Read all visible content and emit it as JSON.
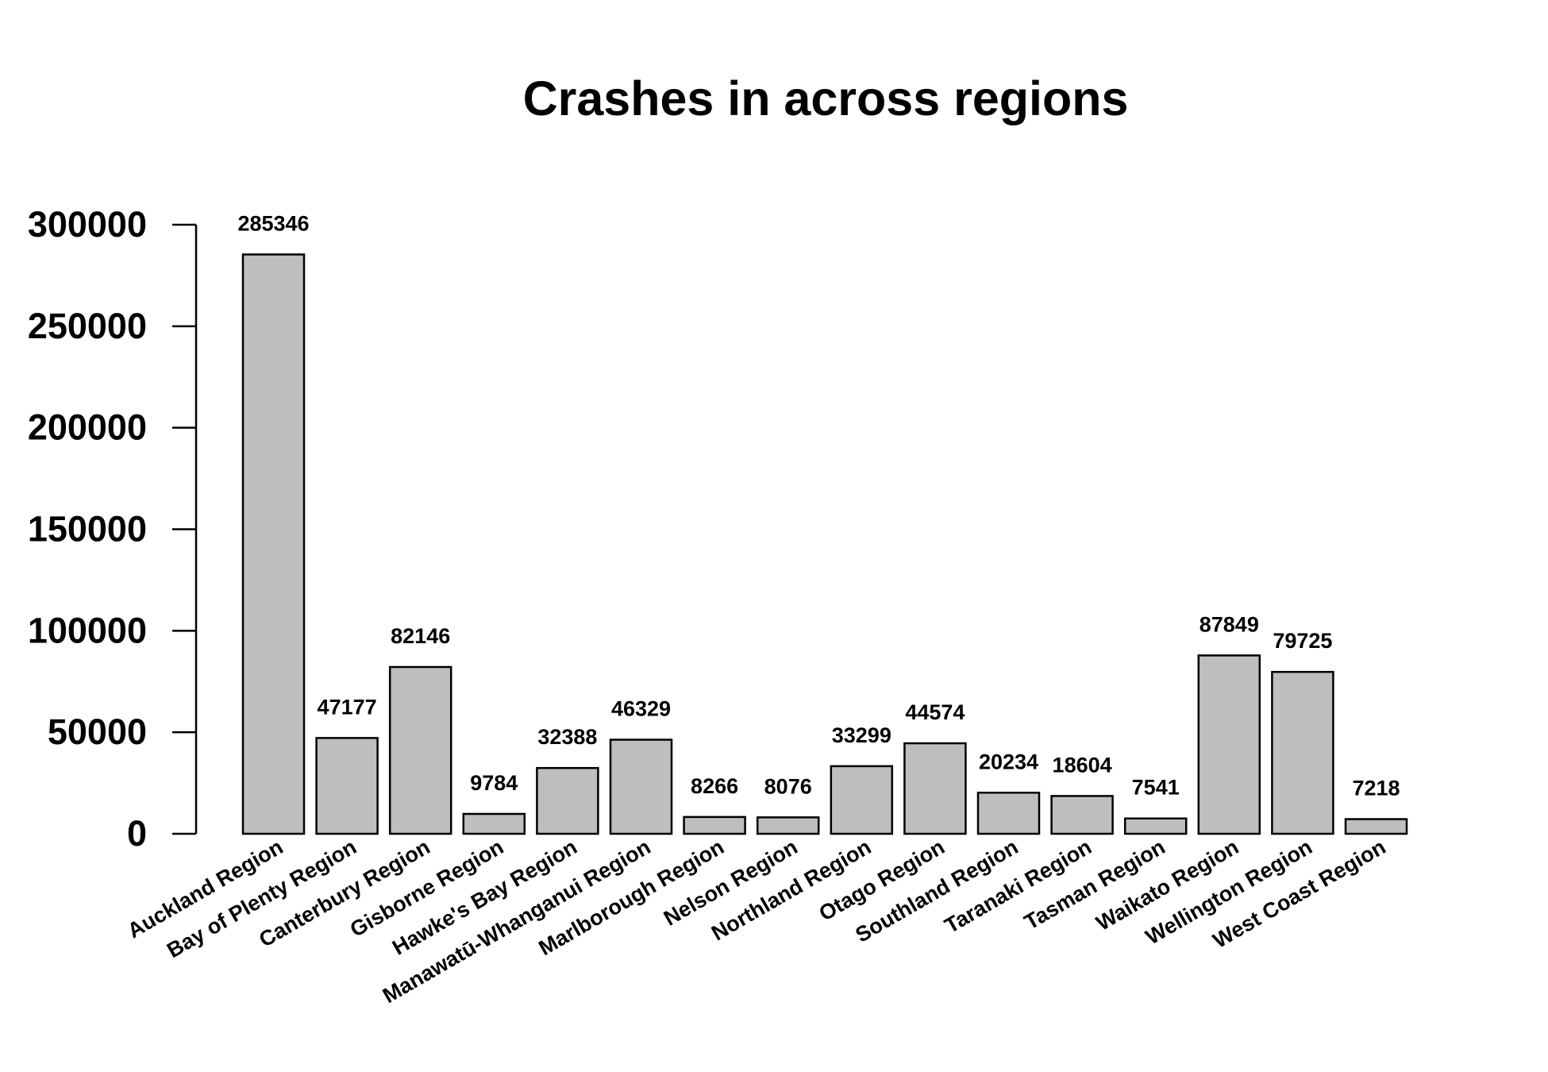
{
  "chart_data": {
    "type": "bar",
    "title": "Crashes in across regions",
    "xlabel": "",
    "ylabel": "",
    "categories": [
      "Auckland Region",
      "Bay of Plenty Region",
      "Canterbury Region",
      "Gisborne Region",
      "Hawke's Bay Region",
      "Manawatū-Whanganui Region",
      "Marlborough Region",
      "Nelson Region",
      "Northland Region",
      "Otago Region",
      "Southland Region",
      "Taranaki Region",
      "Tasman Region",
      "Waikato Region",
      "Wellington Region",
      "West Coast Region"
    ],
    "values": [
      285346,
      47177,
      82146,
      9784,
      32388,
      46329,
      8266,
      8076,
      33299,
      44574,
      20234,
      18604,
      7541,
      87849,
      79725,
      7218
    ],
    "data_labels": [
      "285346",
      "47177",
      "82146",
      "9784",
      "32388",
      "46329",
      "8266",
      "8076",
      "33299",
      "44574",
      "20234",
      "18604",
      "7541",
      "87849",
      "79725",
      "7218"
    ],
    "y_ticks": [
      0,
      50000,
      100000,
      150000,
      200000,
      250000,
      300000
    ],
    "y_tick_labels": [
      "0",
      "50000",
      "100000",
      "150000",
      "200000",
      "250000",
      "300000"
    ],
    "ylim": [
      0,
      300000
    ],
    "grid": false,
    "legend": "none",
    "bar_color": "#bebebe",
    "edge_color": "#000000"
  }
}
